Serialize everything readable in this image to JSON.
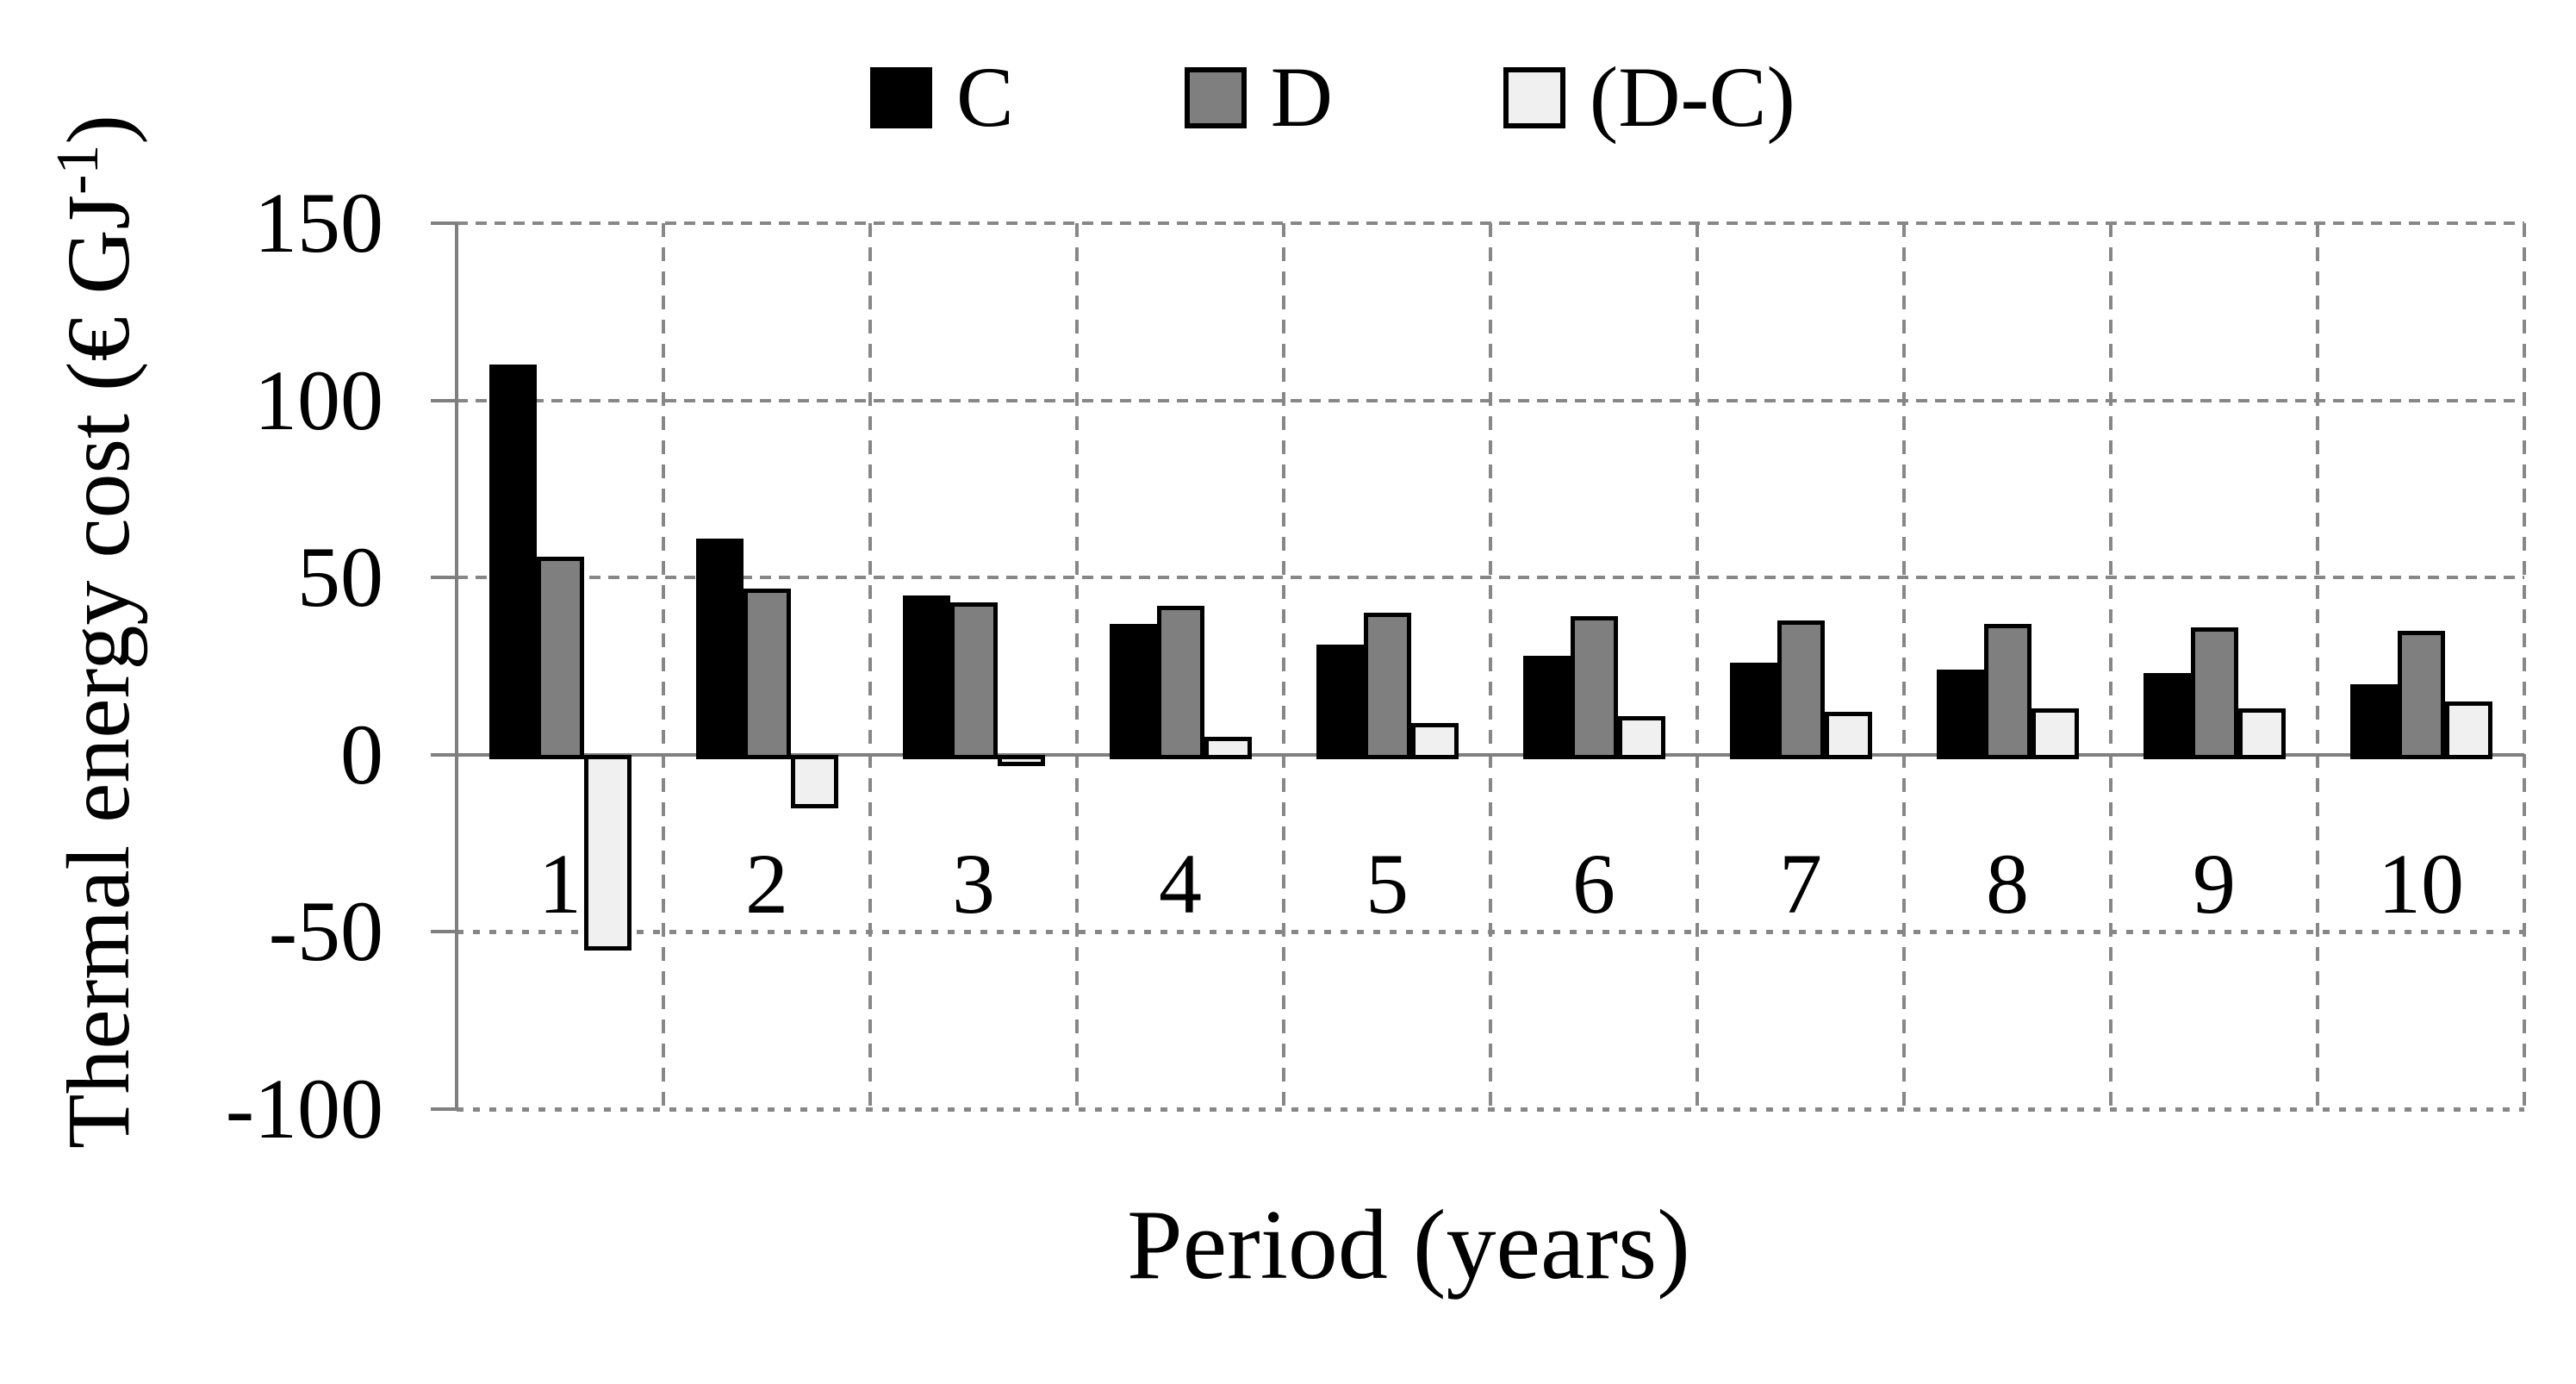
{
  "figure": {
    "background": "#ffffff"
  },
  "y_axis": {
    "title_main": "Thermal energy cost (€ GJ",
    "title_sup": "-1",
    "title_close": ")"
  },
  "x_axis": {
    "title": "Period (years)"
  },
  "chart_data": {
    "type": "bar",
    "title": "",
    "categories": [
      "1",
      "2",
      "3",
      "4",
      "5",
      "6",
      "7",
      "8",
      "9",
      "10"
    ],
    "series": [
      {
        "name": "C",
        "color": "#000000",
        "values": [
          110,
          61,
          45,
          37,
          31,
          28,
          26,
          24,
          23,
          20
        ]
      },
      {
        "name": "D",
        "color": "#7f7f7f",
        "values": [
          56,
          47,
          43,
          42,
          40,
          39,
          38,
          37,
          36,
          35
        ]
      },
      {
        "name": "(D-C)",
        "color": "#f0f0f0",
        "values": [
          -54,
          -14,
          -2,
          5,
          9,
          11,
          12,
          13,
          13,
          15
        ]
      }
    ],
    "xlabel": "Period (years)",
    "ylabel": "Thermal energy cost (€ GJ⁻¹)",
    "ylim": [
      -100,
      150
    ],
    "yticks": [
      150,
      100,
      50,
      0,
      -50,
      -100
    ],
    "ytick_step": 50,
    "grid": true,
    "gridline_style_positive": "dashed",
    "gridline_style_negative": "dotted",
    "legend_position": "top",
    "colors": {
      "grid": "#878787",
      "axis": "#7f7f7f",
      "bar_border": "#000000"
    }
  }
}
